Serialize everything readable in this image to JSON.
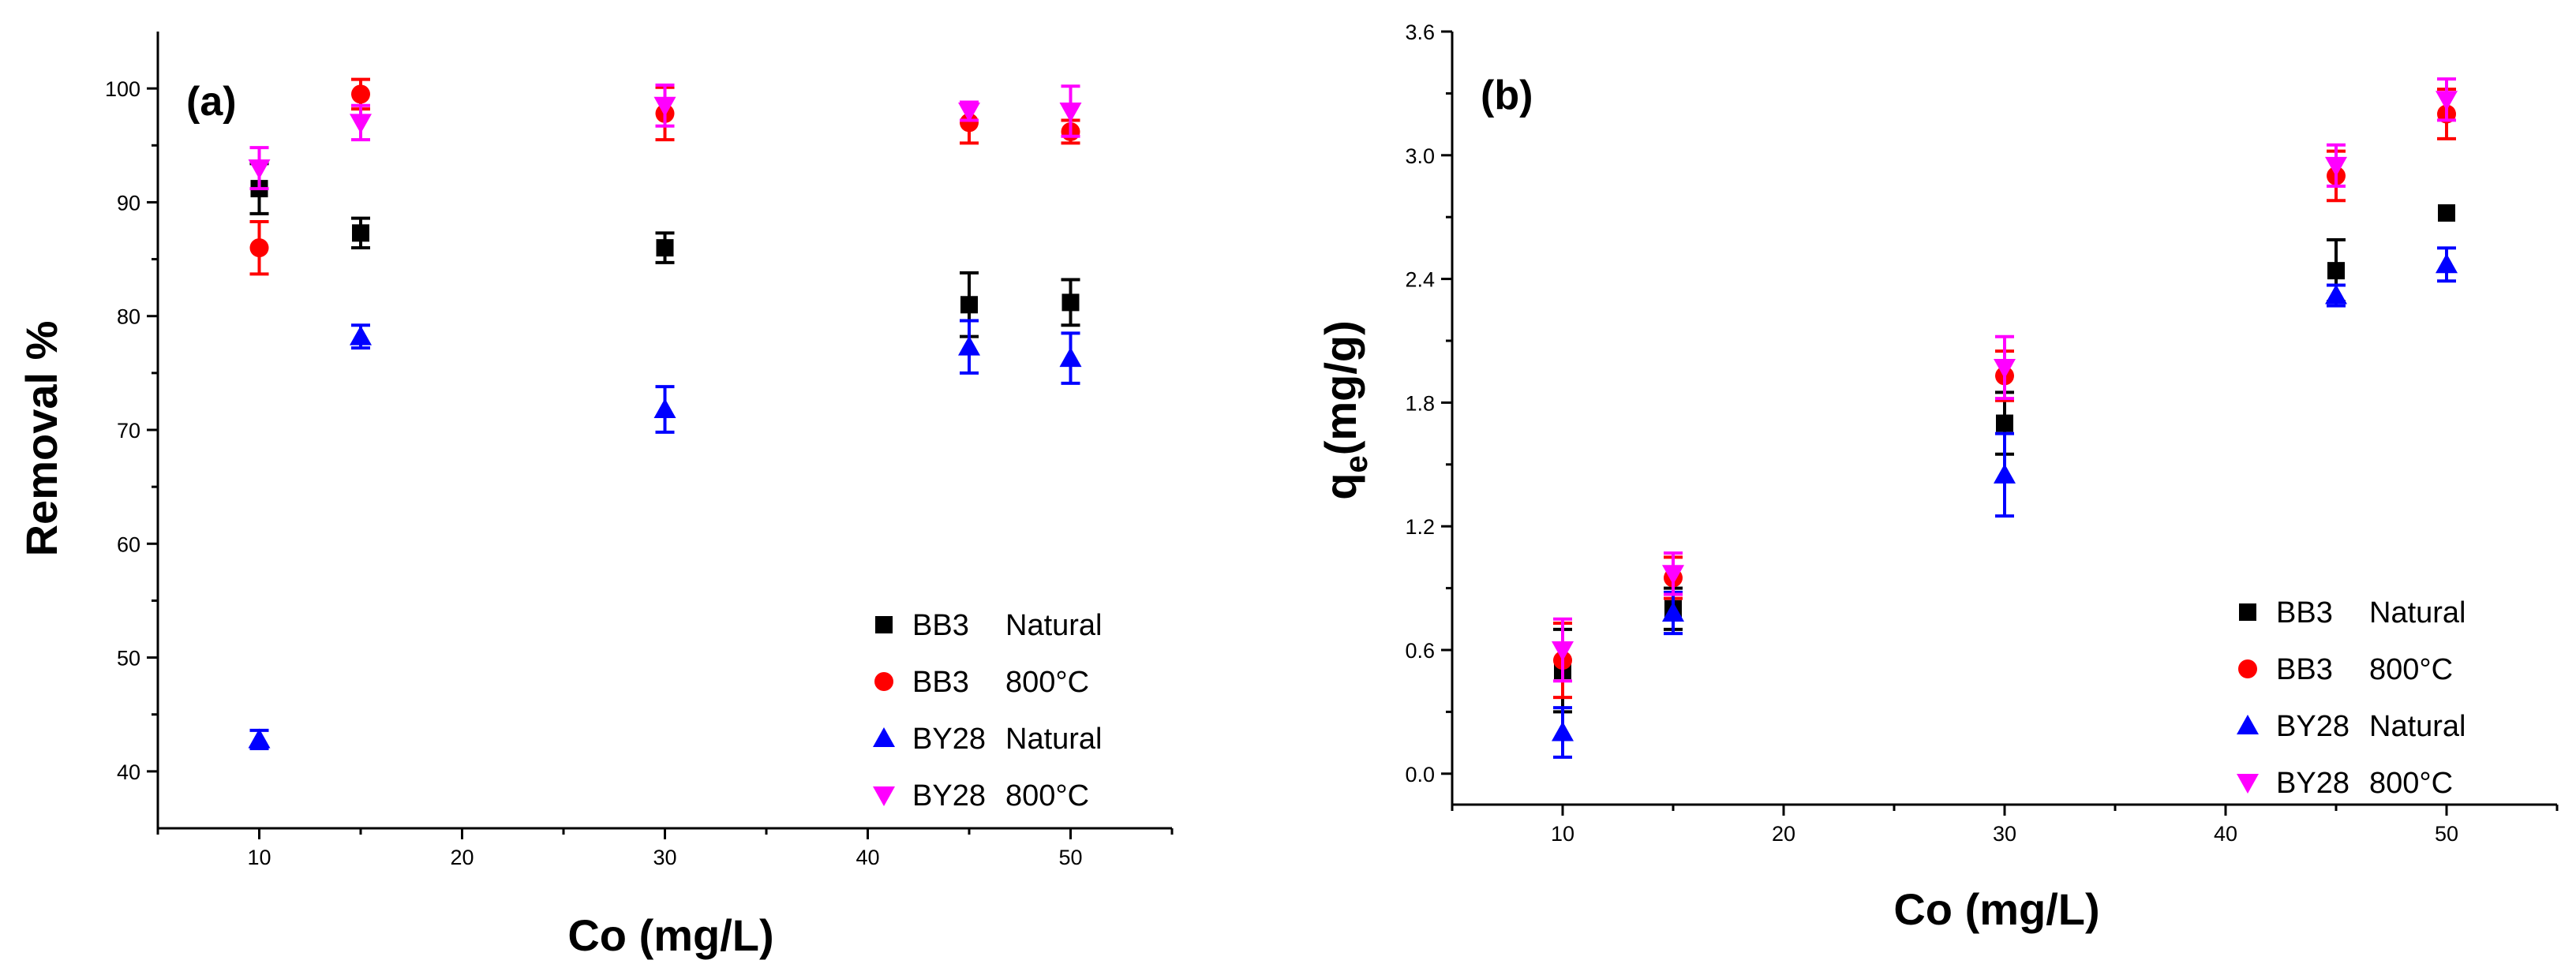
{
  "chart_data": [
    {
      "type": "scatter",
      "panel_label": "(a)",
      "xlabel": "Co (mg/L)",
      "ylabel": "Removal %",
      "xlim": [
        5,
        55
      ],
      "ylim": [
        35,
        105
      ],
      "xticks": [
        10,
        20,
        30,
        40,
        50
      ],
      "yticks": [
        40,
        50,
        60,
        70,
        80,
        90,
        100
      ],
      "x_tick_labels": [
        "10",
        "20",
        "30",
        "40",
        "50"
      ],
      "y_tick_labels": [
        "40",
        "50",
        "60",
        "70",
        "80",
        "90",
        "100"
      ],
      "legend_position": "bottom-right",
      "series": [
        {
          "name": "BB3",
          "condition": "Natural",
          "marker": "square",
          "color": "#000000",
          "x": [
            10,
            15,
            30,
            45,
            50
          ],
          "y": [
            91.2,
            87.3,
            86.0,
            81.0,
            81.2
          ],
          "err": [
            2.2,
            1.3,
            1.3,
            2.8,
            2.0
          ]
        },
        {
          "name": "BB3",
          "condition": "800°C",
          "marker": "circle",
          "color": "#ff0000",
          "x": [
            10,
            15,
            30,
            45,
            50
          ],
          "y": [
            86.0,
            99.5,
            97.8,
            97.0,
            96.2
          ],
          "err": [
            2.3,
            1.3,
            2.3,
            1.8,
            1.0
          ]
        },
        {
          "name": "BY28",
          "condition": "Natural",
          "marker": "triangle-up",
          "color": "#0000ff",
          "x": [
            10,
            15,
            30,
            45,
            50
          ],
          "y": [
            42.8,
            78.2,
            71.8,
            77.3,
            76.3
          ],
          "err": [
            0.8,
            1.0,
            2.0,
            2.3,
            2.2
          ]
        },
        {
          "name": "BY28",
          "condition": "800°C",
          "marker": "triangle-down",
          "color": "#ff00ff",
          "x": [
            10,
            15,
            30,
            45,
            50
          ],
          "y": [
            93.0,
            97.0,
            98.5,
            98.0,
            98.0
          ],
          "err": [
            1.8,
            1.5,
            1.8,
            0.8,
            2.2
          ]
        }
      ]
    },
    {
      "type": "scatter",
      "panel_label": "(b)",
      "xlabel": "Co (mg/L)",
      "ylabel_main": "q",
      "ylabel_sub": "e",
      "ylabel_rest": "(mg/g)",
      "xlim": [
        5,
        55
      ],
      "ylim": [
        -0.15,
        3.6
      ],
      "xticks": [
        10,
        20,
        30,
        40,
        50
      ],
      "yticks": [
        0.0,
        0.6,
        1.2,
        1.8,
        2.4,
        3.0,
        3.6
      ],
      "x_tick_labels": [
        "10",
        "20",
        "30",
        "40",
        "50"
      ],
      "y_tick_labels": [
        "0.0",
        "0.6",
        "1.2",
        "1.8",
        "2.4",
        "3.0",
        "3.6"
      ],
      "legend_position": "bottom-right",
      "series": [
        {
          "name": "BB3",
          "condition": "Natural",
          "marker": "square",
          "color": "#000000",
          "x": [
            10,
            15,
            30,
            45,
            50
          ],
          "y": [
            0.5,
            0.8,
            1.7,
            2.44,
            2.72
          ],
          "err": [
            0.2,
            0.1,
            0.15,
            0.15,
            0.0
          ]
        },
        {
          "name": "BB3",
          "condition": "800°C",
          "marker": "circle",
          "color": "#ff0000",
          "x": [
            10,
            15,
            30,
            45,
            50
          ],
          "y": [
            0.55,
            0.95,
            1.93,
            2.9,
            3.2
          ],
          "err": [
            0.18,
            0.1,
            0.12,
            0.12,
            0.12
          ]
        },
        {
          "name": "BY28",
          "condition": "Natural",
          "marker": "triangle-up",
          "color": "#0000ff",
          "x": [
            10,
            15,
            30,
            45,
            50
          ],
          "y": [
            0.2,
            0.78,
            1.45,
            2.32,
            2.47
          ],
          "err": [
            0.12,
            0.1,
            0.2,
            0.05,
            0.08
          ]
        },
        {
          "name": "BY28",
          "condition": "800°C",
          "marker": "triangle-down",
          "color": "#ff00ff",
          "x": [
            10,
            15,
            30,
            45,
            50
          ],
          "y": [
            0.6,
            0.97,
            1.97,
            2.95,
            3.27
          ],
          "err": [
            0.15,
            0.1,
            0.15,
            0.1,
            0.1
          ]
        }
      ]
    }
  ]
}
